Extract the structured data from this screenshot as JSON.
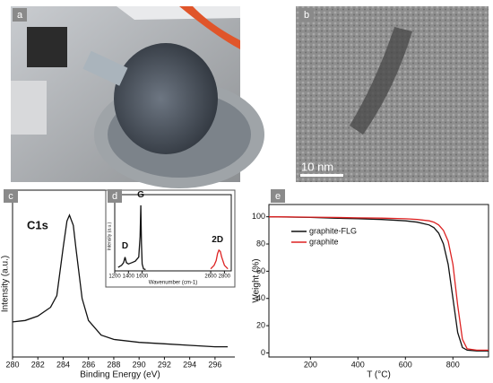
{
  "panels": [
    {
      "label": "a"
    },
    {
      "label": "b",
      "scale_bar": "10 nm"
    }
  ],
  "chart_data": [
    {
      "type": "line",
      "label": "c",
      "annotation": "C1s",
      "xlabel": "Binding Energy (eV)",
      "ylabel": "Intensity (a.u.)",
      "xlim": [
        280,
        297
      ],
      "xticks": [
        280,
        282,
        284,
        286,
        288,
        290,
        292,
        294,
        296
      ],
      "ylim": [
        0,
        100
      ],
      "series": [
        {
          "color": "#111111",
          "x": [
            280,
            281,
            282,
            283,
            283.5,
            284,
            284.3,
            284.5,
            284.8,
            285,
            285.5,
            286,
            287,
            288,
            290,
            292,
            294,
            296,
            297
          ],
          "values": [
            24,
            25,
            28,
            34,
            42,
            75,
            93,
            97,
            90,
            75,
            40,
            25,
            15,
            12,
            10,
            9,
            8,
            7,
            7
          ]
        }
      ]
    },
    {
      "type": "line",
      "label": "d",
      "annotations": [
        "D",
        "G",
        "2D"
      ],
      "xlabel": "Wavenumber (cm-1)",
      "ylabel": "Intensity (a.u.)",
      "xlim": [
        1200,
        2900
      ],
      "xticks": [
        1200,
        1400,
        1600,
        2600,
        2800
      ],
      "ylim": [
        0,
        100
      ],
      "series": [
        {
          "color": "#111111",
          "x": [
            1250,
            1300,
            1330,
            1350,
            1370,
            1400,
            1450,
            1500,
            1550,
            1570,
            1580,
            1590,
            1600,
            1620,
            1650
          ],
          "values": [
            5,
            8,
            12,
            20,
            12,
            10,
            12,
            14,
            20,
            50,
            95,
            40,
            10,
            3,
            2
          ]
        },
        {
          "color": "#dd2222",
          "x": [
            2600,
            2650,
            2680,
            2700,
            2720,
            2740,
            2760,
            2800,
            2850
          ],
          "values": [
            3,
            8,
            15,
            25,
            30,
            28,
            20,
            8,
            3
          ]
        }
      ]
    },
    {
      "type": "line",
      "label": "e",
      "xlabel": "T (°C)",
      "ylabel": "Weight (%)",
      "xlim": [
        25,
        950
      ],
      "xticks": [
        200,
        400,
        600,
        800
      ],
      "ylim": [
        -3,
        109
      ],
      "yticks": [
        0,
        20,
        40,
        60,
        80,
        100
      ],
      "legend": "upper left",
      "series": [
        {
          "name": "graphite-FLG",
          "color": "#111111",
          "x": [
            25,
            100,
            200,
            300,
            400,
            500,
            600,
            650,
            700,
            720,
            740,
            760,
            780,
            800,
            820,
            840,
            860,
            900,
            950
          ],
          "values": [
            100,
            99.8,
            99.5,
            99,
            98.5,
            98,
            97,
            96,
            94,
            92,
            88,
            80,
            65,
            40,
            15,
            4,
            2,
            1.5,
            1.5
          ]
        },
        {
          "name": "graphite",
          "color": "#dd2222",
          "x": [
            25,
            100,
            200,
            300,
            400,
            500,
            600,
            650,
            700,
            720,
            740,
            760,
            780,
            800,
            820,
            840,
            860,
            900,
            950
          ],
          "values": [
            100,
            99.9,
            99.7,
            99.5,
            99.2,
            99,
            98.5,
            98,
            97,
            96,
            94,
            90,
            82,
            65,
            35,
            10,
            3,
            2,
            2
          ]
        }
      ]
    }
  ]
}
